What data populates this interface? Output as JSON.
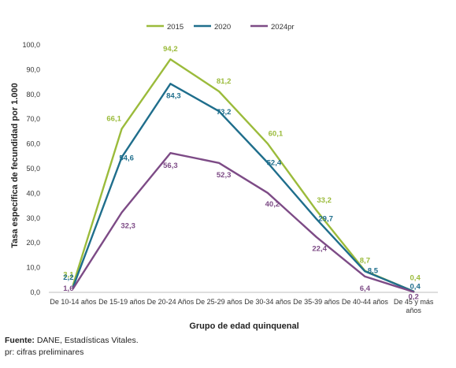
{
  "chart_data": {
    "type": "line",
    "title": "",
    "xlabel": "Grupo de edad quinquenal",
    "ylabel": "Tasa específica de fecundidad por 1.000",
    "ylim": [
      0,
      100
    ],
    "yticks": [
      "0,0",
      "10,0",
      "20,0",
      "30,0",
      "40,0",
      "50,0",
      "60,0",
      "70,0",
      "80,0",
      "90,0",
      "100,0"
    ],
    "grid": false,
    "legend_position": "top-center",
    "categories": [
      "De 10-14 años",
      "De 15-19 años",
      "De 20-24 Años",
      "De 25-29 años",
      "De 30-34 años",
      "De 35-39 años",
      "De 40-44 años",
      "De 45 y más años"
    ],
    "series": [
      {
        "name": "2015",
        "color": "#9bbb3b",
        "values": [
          3.1,
          66.1,
          94.2,
          81.2,
          60.1,
          33.2,
          8.7,
          0.4
        ],
        "labels": [
          "3,1",
          "66,1",
          "94,2",
          "81,2",
          "60,1",
          "33,2",
          "8,7",
          "0,4"
        ]
      },
      {
        "name": "2020",
        "color": "#1f6e8c",
        "values": [
          2.2,
          54.6,
          84.3,
          73.2,
          52.4,
          29.7,
          8.5,
          0.4
        ],
        "labels": [
          "2,2",
          "54,6",
          "84,3",
          "73,2",
          "52,4",
          "29,7",
          "8,5",
          "0,4"
        ]
      },
      {
        "name": "2024pr",
        "color": "#7d4b86",
        "values": [
          1.6,
          32.3,
          56.3,
          52.3,
          40.2,
          22.4,
          6.4,
          0.2
        ],
        "labels": [
          "1,6",
          "32,3",
          "56,3",
          "52,3",
          "40,2",
          "22,4",
          "6,4",
          "0,2"
        ]
      }
    ]
  },
  "footer": {
    "source_label": "Fuente:",
    "source_text": " DANE, Estadísticas Vitales.",
    "note": "pr: cifras preliminares"
  }
}
